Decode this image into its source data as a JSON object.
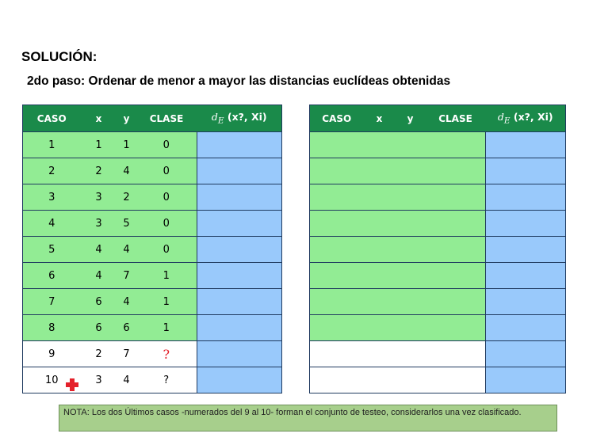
{
  "heading": "SOLUCIÓN:",
  "subheading": "2do paso: Ordenar de menor a mayor las distancias euclídeas obtenidas",
  "table_left": {
    "headers": {
      "caso": "CASO",
      "x": "x",
      "y": "y",
      "clase": "CLASE",
      "d_sym": "d",
      "d_sub": "E",
      "d_args": " (x?, Xi)"
    },
    "rows": [
      {
        "caso": "1",
        "x": "1",
        "y": "1",
        "clase": "0"
      },
      {
        "caso": "2",
        "x": "2",
        "y": "4",
        "clase": "0"
      },
      {
        "caso": "3",
        "x": "3",
        "y": "2",
        "clase": "0"
      },
      {
        "caso": "4",
        "x": "3",
        "y": "5",
        "clase": "0"
      },
      {
        "caso": "5",
        "x": "4",
        "y": "4",
        "clase": "0"
      },
      {
        "caso": "6",
        "x": "4",
        "y": "7",
        "clase": "1"
      },
      {
        "caso": "7",
        "x": "6",
        "y": "4",
        "clase": "1"
      },
      {
        "caso": "8",
        "x": "6",
        "y": "6",
        "clase": "1"
      },
      {
        "caso": "9",
        "x": "2",
        "y": "7",
        "clase": "?"
      },
      {
        "caso": "10",
        "x": "3",
        "y": "4",
        "clase": "?"
      }
    ]
  },
  "table_right": {
    "headers": {
      "caso": "CASO",
      "x": "x",
      "y": "y",
      "clase": "CLASE",
      "d_sym": "d",
      "d_sub": "E",
      "d_args": " (x?, Xi)"
    }
  },
  "note": "NOTA: Los dos Últimos casos -numerados del 9 al 10- forman el conjunto de testeo, considerarlos una vez clasificado.",
  "icons": {
    "cursor": "red-plus-cursor-icon"
  },
  "colors": {
    "header": "#1a8a4a",
    "train_row": "#92ec94",
    "distance_col": "#99c9fb",
    "note_bg": "#a7cf8c"
  }
}
